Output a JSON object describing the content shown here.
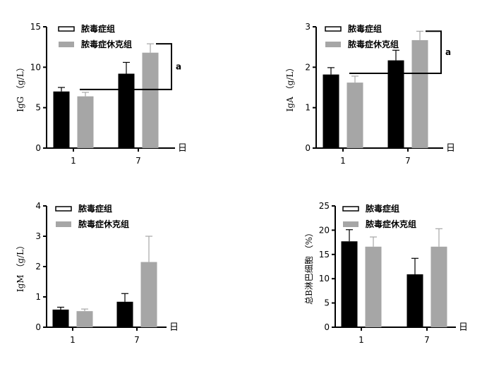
{
  "colors": {
    "sepsis": "#000000",
    "shock": "#a6a6a6",
    "error_sepsis": "#000000",
    "error_shock": "#a6a6a6"
  },
  "chart_data": [
    {
      "type": "bar",
      "ylabel": "IgG （g/L）",
      "xunit": "日",
      "categories": [
        "1",
        "7"
      ],
      "ylim": [
        0,
        15
      ],
      "yticks": [
        "0",
        "5",
        "10",
        "15"
      ],
      "series": [
        {
          "name": "脓毒症组",
          "values": [
            7.0,
            9.2
          ],
          "errors": [
            0.5,
            1.4
          ]
        },
        {
          "name": "脓毒症休克组",
          "values": [
            6.4,
            11.8
          ],
          "errors": [
            0.5,
            1.1
          ]
        }
      ],
      "annotation": "a"
    },
    {
      "type": "bar",
      "ylabel": "IgA （g/L）",
      "xunit": "日",
      "categories": [
        "1",
        "7"
      ],
      "ylim": [
        0,
        3
      ],
      "yticks": [
        "0",
        "1",
        "2",
        "3"
      ],
      "series": [
        {
          "name": "脓毒症组",
          "values": [
            1.82,
            2.17
          ],
          "errors": [
            0.17,
            0.25
          ]
        },
        {
          "name": "脓毒症休克组",
          "values": [
            1.62,
            2.67
          ],
          "errors": [
            0.16,
            0.22
          ]
        }
      ],
      "annotation": "a"
    },
    {
      "type": "bar",
      "ylabel": "IgM （g/L）",
      "xunit": "日",
      "categories": [
        "1",
        "7"
      ],
      "ylim": [
        0,
        4
      ],
      "yticks": [
        "0",
        "1",
        "2",
        "3",
        "4"
      ],
      "series": [
        {
          "name": "脓毒症组",
          "values": [
            0.58,
            0.84
          ],
          "errors": [
            0.08,
            0.27
          ]
        },
        {
          "name": "脓毒症休克组",
          "values": [
            0.53,
            2.15
          ],
          "errors": [
            0.07,
            0.85
          ]
        }
      ],
      "annotation": ""
    },
    {
      "type": "bar",
      "ylabel": "总B淋巴细胞 （%）",
      "xunit": "日",
      "categories": [
        "1",
        "7"
      ],
      "ylim": [
        0,
        25
      ],
      "yticks": [
        "0",
        "5",
        "10",
        "15",
        "20",
        "25"
      ],
      "series": [
        {
          "name": "脓毒症组",
          "values": [
            17.7,
            10.9
          ],
          "errors": [
            2.4,
            3.3
          ]
        },
        {
          "name": "脓毒症休克组",
          "values": [
            16.6,
            16.6
          ],
          "errors": [
            2.0,
            3.7
          ]
        }
      ],
      "annotation": ""
    }
  ]
}
